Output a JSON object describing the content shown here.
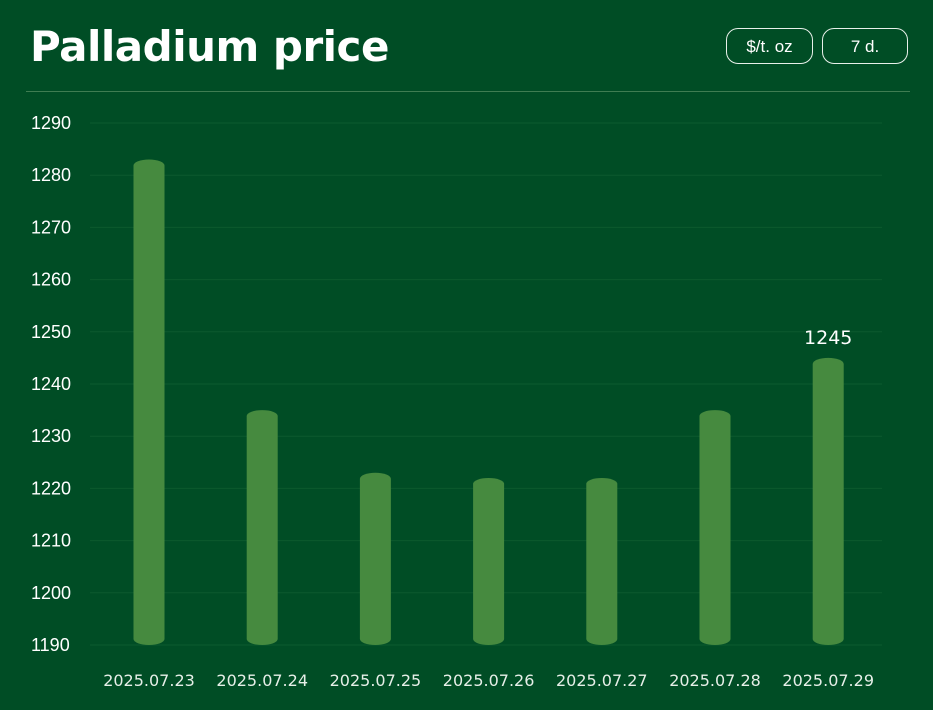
{
  "header": {
    "title": "Palladium price",
    "unit_button": "$/t. oz",
    "range_button": "7 d."
  },
  "colors": {
    "background": "#004d25",
    "bar": "#468a3f",
    "gridline": "#0c5a2e"
  },
  "chart_data": {
    "type": "bar",
    "title": "Palladium price",
    "xlabel": "",
    "ylabel": "",
    "categories": [
      "2025.07.23",
      "2025.07.24",
      "2025.07.25",
      "2025.07.26",
      "2025.07.27",
      "2025.07.28",
      "2025.07.29"
    ],
    "values": [
      1283,
      1235,
      1223,
      1222,
      1222,
      1235,
      1245
    ],
    "ylim": [
      1190,
      1290
    ],
    "yticks": [
      1190,
      1200,
      1210,
      1220,
      1230,
      1240,
      1250,
      1260,
      1270,
      1280,
      1290
    ],
    "data_labels": [
      {
        "index": 6,
        "text": "1245"
      }
    ],
    "grid": true,
    "legend": "none"
  }
}
